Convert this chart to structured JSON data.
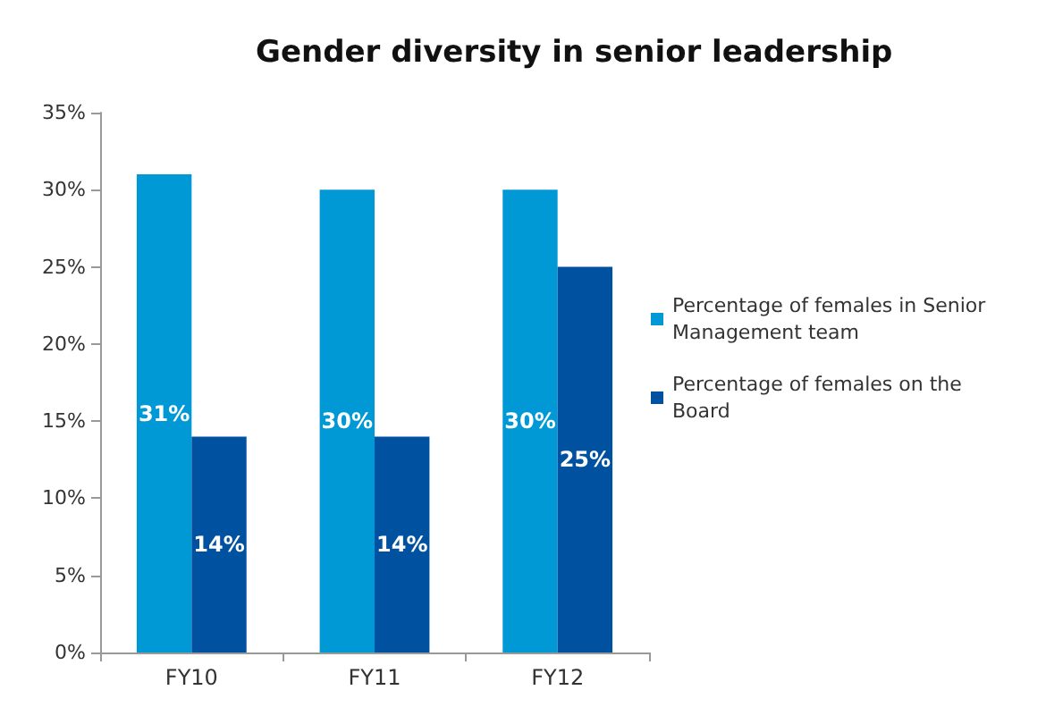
{
  "chart_data": {
    "type": "bar",
    "title": "Gender diversity in senior leadership",
    "categories": [
      "FY10",
      "FY11",
      "FY12"
    ],
    "series": [
      {
        "name": "Percentage of females in Senior Management team",
        "color": "#0099d6",
        "values": [
          31,
          30,
          30
        ],
        "value_labels": [
          "31%",
          "30%",
          "30%"
        ]
      },
      {
        "name": "Percentage of females on the Board",
        "color": "#0052a0",
        "values": [
          14,
          14,
          25
        ],
        "value_labels": [
          "14%",
          "14%",
          "25%"
        ]
      }
    ],
    "ylim": [
      0,
      35
    ],
    "yticks": [
      {
        "value": 0,
        "label": "0%"
      },
      {
        "value": 5,
        "label": "5%"
      },
      {
        "value": 10,
        "label": "10%"
      },
      {
        "value": 15,
        "label": "15%"
      },
      {
        "value": 20,
        "label": "20%"
      },
      {
        "value": 25,
        "label": "25%"
      },
      {
        "value": 30,
        "label": "30%"
      },
      {
        "value": 35,
        "label": "35%"
      }
    ],
    "grid": false,
    "legend": "right"
  }
}
